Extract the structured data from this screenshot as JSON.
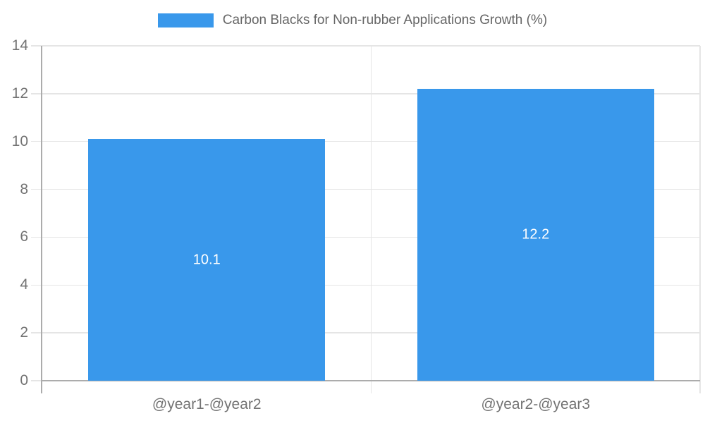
{
  "chart_data": {
    "type": "bar",
    "title": "",
    "series_name": "Carbon Blacks for Non-rubber Applications Growth (%)",
    "categories": [
      "@year1-@year2",
      "@year2-@year3"
    ],
    "values": [
      10.1,
      12.2
    ],
    "data_labels": [
      "10.1",
      "12.2"
    ],
    "ylim": [
      0,
      14
    ],
    "ytick_step": 2,
    "ytick_labels": [
      "0",
      "2",
      "4",
      "6",
      "8",
      "10",
      "12",
      "14"
    ],
    "xlabel": "",
    "ylabel": "",
    "grid": true,
    "legend_position": "top",
    "bar_width_fraction": 0.72,
    "colors": {
      "bar": "#3998EB",
      "grid_line": "#E5E5E5",
      "axis_line": "#ACACAC",
      "tick_text": "#737373",
      "legend_text": "#666666",
      "data_label_text": "#FFFFFF",
      "background": "#FFFFFF"
    }
  }
}
